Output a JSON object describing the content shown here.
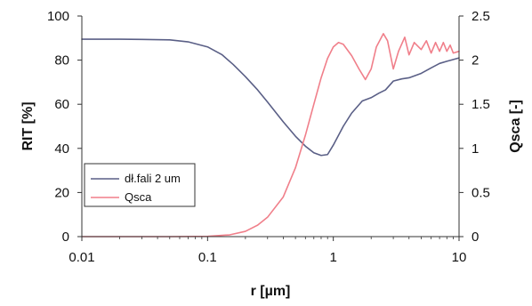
{
  "chart_data": {
    "type": "line",
    "xlabel": "r [µm]",
    "ylabel_left": "RIT [%]",
    "ylabel_right": "Qsca [-]",
    "x_scale": "log",
    "xlim": [
      0.01,
      10
    ],
    "ylim_left": [
      0,
      100
    ],
    "ylim_right": [
      0,
      2.5
    ],
    "x_ticks": [
      "0.01",
      "0.1",
      "1",
      "10"
    ],
    "y_ticks_left": [
      "0",
      "20",
      "40",
      "60",
      "80",
      "100"
    ],
    "y_ticks_right": [
      "0",
      "0.5",
      "1",
      "1.5",
      "2",
      "2.5"
    ],
    "legend_position": "bottom-left",
    "series": [
      {
        "name": "dł.fali 2 um",
        "color": "#5a5f86",
        "axis": "left",
        "x": [
          0.01,
          0.02,
          0.03,
          0.05,
          0.07,
          0.1,
          0.13,
          0.16,
          0.2,
          0.25,
          0.3,
          0.4,
          0.5,
          0.6,
          0.7,
          0.8,
          0.9,
          1.0,
          1.2,
          1.4,
          1.7,
          2.0,
          2.3,
          2.6,
          3.0,
          3.5,
          4.0,
          5.0,
          6.0,
          7.0,
          8.0,
          10.0
        ],
        "values": [
          89.5,
          89.5,
          89.4,
          89.2,
          88.3,
          86.0,
          82.5,
          78.0,
          72.5,
          66.5,
          61.0,
          52.0,
          45.5,
          41.0,
          38.0,
          36.8,
          37.2,
          41.5,
          50.0,
          56.0,
          61.5,
          63.0,
          65.0,
          66.5,
          70.5,
          71.5,
          72.0,
          74.0,
          76.5,
          78.5,
          79.5,
          81.0
        ]
      },
      {
        "name": "Qsca",
        "color": "#f07f8a",
        "axis": "right",
        "x": [
          0.01,
          0.05,
          0.1,
          0.15,
          0.2,
          0.25,
          0.3,
          0.4,
          0.5,
          0.6,
          0.7,
          0.8,
          0.9,
          1.0,
          1.1,
          1.2,
          1.4,
          1.6,
          1.8,
          2.0,
          2.2,
          2.5,
          2.7,
          3.0,
          3.3,
          3.7,
          4.0,
          4.4,
          5.0,
          5.5,
          6.0,
          6.5,
          7.0,
          7.5,
          8.0,
          8.5,
          9.0,
          10.0
        ],
        "values": [
          0.0,
          0.0,
          0.003,
          0.02,
          0.06,
          0.13,
          0.22,
          0.45,
          0.78,
          1.15,
          1.5,
          1.8,
          2.02,
          2.15,
          2.2,
          2.18,
          2.05,
          1.9,
          1.78,
          1.9,
          2.15,
          2.3,
          2.22,
          1.9,
          2.1,
          2.26,
          2.06,
          2.2,
          2.12,
          2.22,
          2.08,
          2.2,
          2.1,
          2.2,
          2.1,
          2.17,
          2.08,
          2.1
        ]
      }
    ]
  }
}
